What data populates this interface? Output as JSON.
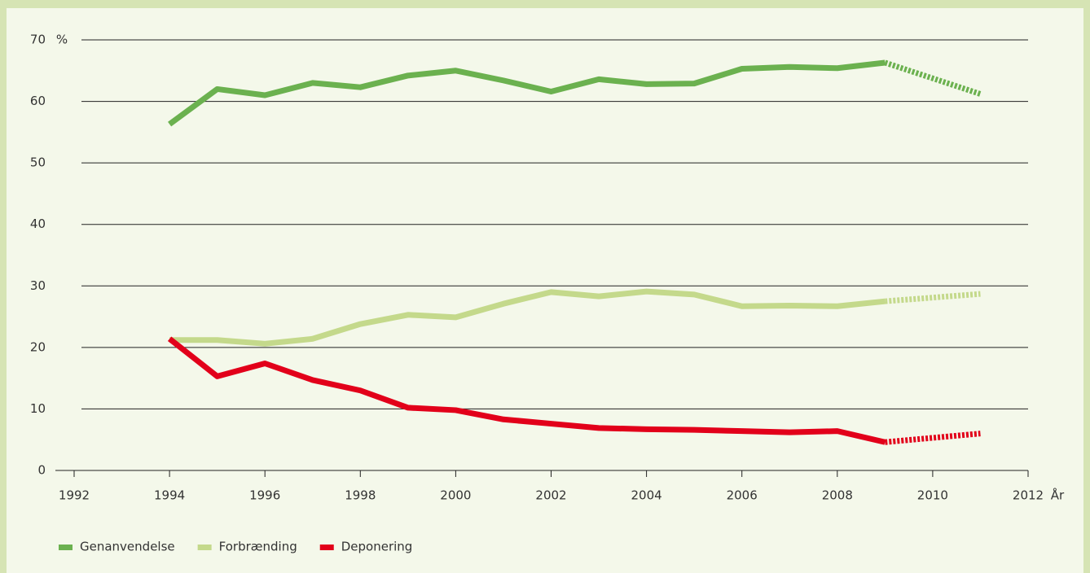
{
  "chart_data": {
    "type": "line",
    "y_unit": "%",
    "x_label": "År",
    "x": [
      1994,
      1995,
      1996,
      1997,
      1998,
      1999,
      2000,
      2001,
      2002,
      2003,
      2004,
      2005,
      2006,
      2007,
      2008,
      2009,
      2011
    ],
    "dashed_after": 2009,
    "series": [
      {
        "name": "Genanvendelse",
        "color": "#6bb14f",
        "values": [
          56.3,
          62.0,
          61.0,
          63.0,
          62.3,
          64.2,
          65.0,
          63.4,
          61.6,
          63.6,
          62.8,
          62.9,
          65.3,
          65.6,
          65.4,
          66.3,
          61.2
        ]
      },
      {
        "name": "Forbrænding",
        "color": "#c4d98b",
        "values": [
          21.2,
          21.2,
          20.6,
          21.4,
          23.8,
          25.3,
          24.9,
          27.1,
          29.0,
          28.3,
          29.1,
          28.6,
          26.7,
          26.8,
          26.7,
          27.5,
          28.7
        ]
      },
      {
        "name": "Deponering",
        "color": "#e2001a",
        "values": [
          21.4,
          15.3,
          17.4,
          14.7,
          13.0,
          10.2,
          9.8,
          8.3,
          7.6,
          6.9,
          6.7,
          6.6,
          6.4,
          6.2,
          6.4,
          4.6,
          6.0
        ]
      }
    ],
    "xlim": [
      1992,
      2012
    ],
    "xticks": [
      1992,
      1994,
      1996,
      1998,
      2000,
      2002,
      2004,
      2006,
      2008,
      2010,
      2012
    ],
    "ylim": [
      0,
      70
    ],
    "yticks": [
      0,
      10,
      20,
      30,
      40,
      50,
      60,
      70
    ],
    "grid": true,
    "legend": "bottom-left"
  }
}
